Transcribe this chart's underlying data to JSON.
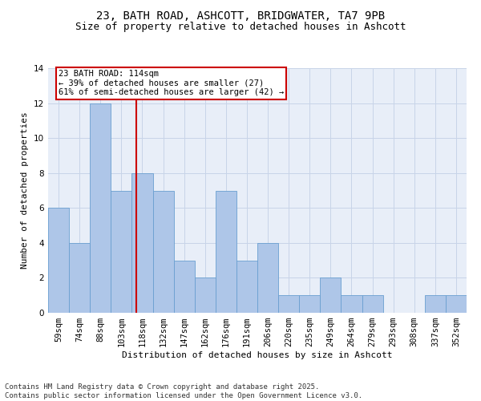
{
  "title_line1": "23, BATH ROAD, ASHCOTT, BRIDGWATER, TA7 9PB",
  "title_line2": "Size of property relative to detached houses in Ashcott",
  "xlabel": "Distribution of detached houses by size in Ashcott",
  "ylabel": "Number of detached properties",
  "bar_labels": [
    "59sqm",
    "74sqm",
    "88sqm",
    "103sqm",
    "118sqm",
    "132sqm",
    "147sqm",
    "162sqm",
    "176sqm",
    "191sqm",
    "206sqm",
    "220sqm",
    "235sqm",
    "249sqm",
    "264sqm",
    "279sqm",
    "293sqm",
    "308sqm",
    "337sqm",
    "352sqm"
  ],
  "bar_values": [
    6,
    4,
    12,
    7,
    8,
    7,
    3,
    2,
    7,
    3,
    4,
    1,
    1,
    2,
    1,
    1,
    0,
    0,
    1,
    1
  ],
  "bar_color": "#aec6e8",
  "bar_edgecolor": "#6a9fd0",
  "ref_line_color": "#cc0000",
  "annotation_text": "23 BATH ROAD: 114sqm\n← 39% of detached houses are smaller (27)\n61% of semi-detached houses are larger (42) →",
  "annotation_box_facecolor": "#ffffff",
  "annotation_box_edgecolor": "#cc0000",
  "ylim": [
    0,
    14
  ],
  "yticks": [
    0,
    2,
    4,
    6,
    8,
    10,
    12,
    14
  ],
  "grid_color": "#c8d4e8",
  "bg_color": "#e8eef8",
  "footer_text": "Contains HM Land Registry data © Crown copyright and database right 2025.\nContains public sector information licensed under the Open Government Licence v3.0.",
  "title_fontsize": 10,
  "subtitle_fontsize": 9,
  "axis_label_fontsize": 8,
  "tick_fontsize": 7.5,
  "annotation_fontsize": 7.5,
  "footer_fontsize": 6.5
}
